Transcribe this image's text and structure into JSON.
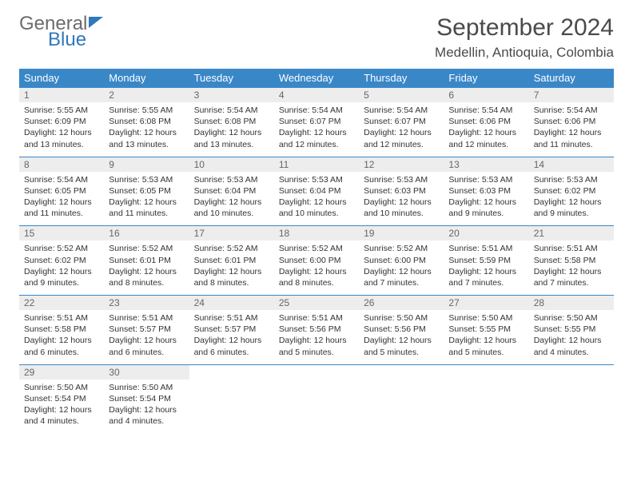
{
  "brand": {
    "part1": "General",
    "part2": "Blue"
  },
  "title": "September 2024",
  "location": "Medellin, Antioquia, Colombia",
  "colors": {
    "header_bg": "#3a87c8",
    "header_text": "#ffffff",
    "daynum_bg": "#ededed",
    "row_border": "#3a87c8",
    "brand_blue": "#2f78bd",
    "text": "#333333",
    "page_bg": "#ffffff"
  },
  "columns": [
    "Sunday",
    "Monday",
    "Tuesday",
    "Wednesday",
    "Thursday",
    "Friday",
    "Saturday"
  ],
  "layout": {
    "cols": 7,
    "rows": 5,
    "cell_font_size_pt": 8,
    "header_font_size_pt": 10
  },
  "days": [
    {
      "n": "1",
      "sr": "5:55 AM",
      "ss": "6:09 PM",
      "dl": "12 hours and 13 minutes."
    },
    {
      "n": "2",
      "sr": "5:55 AM",
      "ss": "6:08 PM",
      "dl": "12 hours and 13 minutes."
    },
    {
      "n": "3",
      "sr": "5:54 AM",
      "ss": "6:08 PM",
      "dl": "12 hours and 13 minutes."
    },
    {
      "n": "4",
      "sr": "5:54 AM",
      "ss": "6:07 PM",
      "dl": "12 hours and 12 minutes."
    },
    {
      "n": "5",
      "sr": "5:54 AM",
      "ss": "6:07 PM",
      "dl": "12 hours and 12 minutes."
    },
    {
      "n": "6",
      "sr": "5:54 AM",
      "ss": "6:06 PM",
      "dl": "12 hours and 12 minutes."
    },
    {
      "n": "7",
      "sr": "5:54 AM",
      "ss": "6:06 PM",
      "dl": "12 hours and 11 minutes."
    },
    {
      "n": "8",
      "sr": "5:54 AM",
      "ss": "6:05 PM",
      "dl": "12 hours and 11 minutes."
    },
    {
      "n": "9",
      "sr": "5:53 AM",
      "ss": "6:05 PM",
      "dl": "12 hours and 11 minutes."
    },
    {
      "n": "10",
      "sr": "5:53 AM",
      "ss": "6:04 PM",
      "dl": "12 hours and 10 minutes."
    },
    {
      "n": "11",
      "sr": "5:53 AM",
      "ss": "6:04 PM",
      "dl": "12 hours and 10 minutes."
    },
    {
      "n": "12",
      "sr": "5:53 AM",
      "ss": "6:03 PM",
      "dl": "12 hours and 10 minutes."
    },
    {
      "n": "13",
      "sr": "5:53 AM",
      "ss": "6:03 PM",
      "dl": "12 hours and 9 minutes."
    },
    {
      "n": "14",
      "sr": "5:53 AM",
      "ss": "6:02 PM",
      "dl": "12 hours and 9 minutes."
    },
    {
      "n": "15",
      "sr": "5:52 AM",
      "ss": "6:02 PM",
      "dl": "12 hours and 9 minutes."
    },
    {
      "n": "16",
      "sr": "5:52 AM",
      "ss": "6:01 PM",
      "dl": "12 hours and 8 minutes."
    },
    {
      "n": "17",
      "sr": "5:52 AM",
      "ss": "6:01 PM",
      "dl": "12 hours and 8 minutes."
    },
    {
      "n": "18",
      "sr": "5:52 AM",
      "ss": "6:00 PM",
      "dl": "12 hours and 8 minutes."
    },
    {
      "n": "19",
      "sr": "5:52 AM",
      "ss": "6:00 PM",
      "dl": "12 hours and 7 minutes."
    },
    {
      "n": "20",
      "sr": "5:51 AM",
      "ss": "5:59 PM",
      "dl": "12 hours and 7 minutes."
    },
    {
      "n": "21",
      "sr": "5:51 AM",
      "ss": "5:58 PM",
      "dl": "12 hours and 7 minutes."
    },
    {
      "n": "22",
      "sr": "5:51 AM",
      "ss": "5:58 PM",
      "dl": "12 hours and 6 minutes."
    },
    {
      "n": "23",
      "sr": "5:51 AM",
      "ss": "5:57 PM",
      "dl": "12 hours and 6 minutes."
    },
    {
      "n": "24",
      "sr": "5:51 AM",
      "ss": "5:57 PM",
      "dl": "12 hours and 6 minutes."
    },
    {
      "n": "25",
      "sr": "5:51 AM",
      "ss": "5:56 PM",
      "dl": "12 hours and 5 minutes."
    },
    {
      "n": "26",
      "sr": "5:50 AM",
      "ss": "5:56 PM",
      "dl": "12 hours and 5 minutes."
    },
    {
      "n": "27",
      "sr": "5:50 AM",
      "ss": "5:55 PM",
      "dl": "12 hours and 5 minutes."
    },
    {
      "n": "28",
      "sr": "5:50 AM",
      "ss": "5:55 PM",
      "dl": "12 hours and 4 minutes."
    },
    {
      "n": "29",
      "sr": "5:50 AM",
      "ss": "5:54 PM",
      "dl": "12 hours and 4 minutes."
    },
    {
      "n": "30",
      "sr": "5:50 AM",
      "ss": "5:54 PM",
      "dl": "12 hours and 4 minutes."
    }
  ],
  "labels": {
    "sunrise": "Sunrise:",
    "sunset": "Sunset:",
    "daylight": "Daylight:"
  }
}
